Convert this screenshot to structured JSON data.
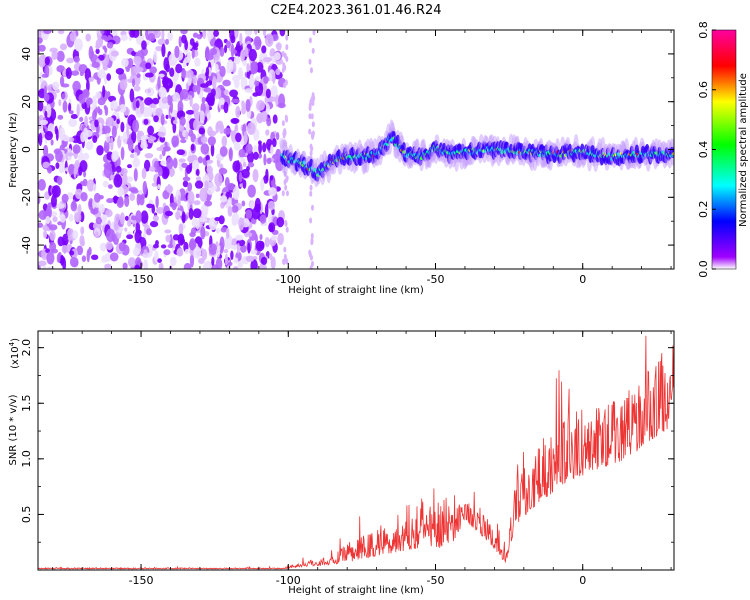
{
  "title": "C2E4.2023.361.01.46.R24",
  "chart_data": [
    {
      "type": "heatmap",
      "xlabel": "Height of straight line (km)",
      "ylabel": "Frequency (Hz)",
      "xlim": [
        -185,
        31
      ],
      "ylim": [
        -50,
        50
      ],
      "xticks": [
        -150,
        -100,
        -50,
        0
      ],
      "yticks": [
        -40,
        -20,
        0,
        20,
        40
      ],
      "colorbar": {
        "label": "Normalized spectral amplitude",
        "range": [
          0,
          0.8
        ],
        "ticks": [
          0.0,
          0.2,
          0.4,
          0.6,
          0.8
        ],
        "colors": [
          "#ffffff",
          "#a000ff",
          "#0000ff",
          "#00ffff",
          "#00ff00",
          "#ffff00",
          "#ff0000",
          "#ff00a0"
        ]
      },
      "noise_region_x": [
        -185,
        -102
      ],
      "ridge": [
        {
          "x": -102,
          "y": -3
        },
        {
          "x": -95,
          "y": -6
        },
        {
          "x": -90,
          "y": -10
        },
        {
          "x": -85,
          "y": -5
        },
        {
          "x": -80,
          "y": -3
        },
        {
          "x": -75,
          "y": -3
        },
        {
          "x": -70,
          "y": -2
        },
        {
          "x": -65,
          "y": 5
        },
        {
          "x": -60,
          "y": -2
        },
        {
          "x": -55,
          "y": -3
        },
        {
          "x": -50,
          "y": 1
        },
        {
          "x": -45,
          "y": -2
        },
        {
          "x": -40,
          "y": -1
        },
        {
          "x": -30,
          "y": 0
        },
        {
          "x": -20,
          "y": -1
        },
        {
          "x": -10,
          "y": -2
        },
        {
          "x": 0,
          "y": -1
        },
        {
          "x": 10,
          "y": -3
        },
        {
          "x": 20,
          "y": -2
        },
        {
          "x": 31,
          "y": -2
        }
      ]
    },
    {
      "type": "line",
      "xlabel": "Height of straight line (km)",
      "ylabel": "SNR (10 * v/v)",
      "ylabel_multiplier": "(x10",
      "ylabel_exponent": "4",
      "ylabel_multiplier_close": ")",
      "xlim": [
        -185,
        31
      ],
      "ylim": [
        0,
        2.15
      ],
      "xticks": [
        -150,
        -100,
        -50,
        0
      ],
      "yticks": [
        0.5,
        1.0,
        1.5,
        2.0
      ],
      "ytick_labels": [
        "0.5",
        "1.0",
        "1.5",
        "2.0"
      ],
      "series": [
        {
          "color": "#ee3333",
          "envelope": [
            {
              "x": -185,
              "base": 0.01,
              "amp": 0.01
            },
            {
              "x": -102,
              "base": 0.01,
              "amp": 0.01
            },
            {
              "x": -95,
              "base": 0.03,
              "amp": 0.05
            },
            {
              "x": -85,
              "base": 0.05,
              "amp": 0.08
            },
            {
              "x": -78,
              "base": 0.08,
              "amp": 0.2
            },
            {
              "x": -65,
              "base": 0.15,
              "amp": 0.3
            },
            {
              "x": -55,
              "base": 0.2,
              "amp": 0.5
            },
            {
              "x": -45,
              "base": 0.2,
              "amp": 0.45
            },
            {
              "x": -40,
              "base": 0.45,
              "amp": 0.2
            },
            {
              "x": -32,
              "base": 0.25,
              "amp": 0.2
            },
            {
              "x": -26,
              "base": 0.05,
              "amp": 0.1
            },
            {
              "x": -23,
              "base": 0.4,
              "amp": 0.4
            },
            {
              "x": -15,
              "base": 0.6,
              "amp": 0.6
            },
            {
              "x": -5,
              "base": 0.8,
              "amp": 0.6
            },
            {
              "x": 5,
              "base": 0.9,
              "amp": 0.6
            },
            {
              "x": 15,
              "base": 1.0,
              "amp": 0.6
            },
            {
              "x": 25,
              "base": 1.2,
              "amp": 0.7
            },
            {
              "x": 31,
              "base": 1.3,
              "amp": 0.8
            }
          ]
        }
      ]
    }
  ]
}
